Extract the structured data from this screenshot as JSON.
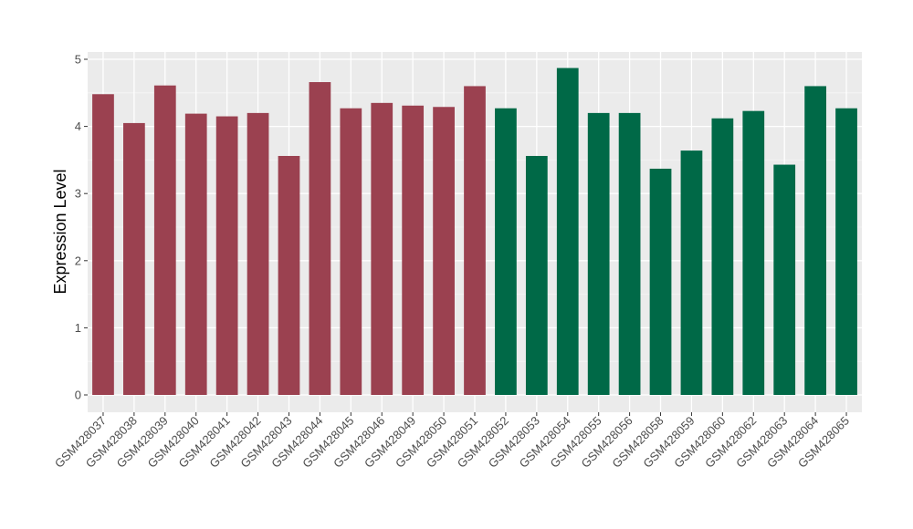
{
  "chart_data": {
    "type": "bar",
    "title": "",
    "xlabel": "",
    "ylabel": "Expression Level",
    "ylim": [
      0,
      5.05
    ],
    "yticks": [
      0,
      1,
      2,
      3,
      4,
      5
    ],
    "grid": true,
    "background": "#ebebeb",
    "legend": "none",
    "categories": [
      "GSM428037",
      "GSM428038",
      "GSM428039",
      "GSM428040",
      "GSM428041",
      "GSM428042",
      "GSM428043",
      "GSM428044",
      "GSM428045",
      "GSM428046",
      "GSM428049",
      "GSM428050",
      "GSM428051",
      "GSM428052",
      "GSM428053",
      "GSM428054",
      "GSM428055",
      "GSM428056",
      "GSM428058",
      "GSM428059",
      "GSM428060",
      "GSM428062",
      "GSM428063",
      "GSM428064",
      "GSM428065"
    ],
    "values": [
      4.48,
      4.05,
      4.61,
      4.19,
      4.15,
      4.2,
      3.56,
      4.66,
      4.27,
      4.35,
      4.31,
      4.29,
      4.6,
      4.27,
      3.56,
      4.87,
      4.2,
      4.2,
      3.37,
      3.64,
      4.12,
      4.23,
      3.43,
      4.6,
      4.27
    ],
    "colors": [
      "#9b4150",
      "#9b4150",
      "#9b4150",
      "#9b4150",
      "#9b4150",
      "#9b4150",
      "#9b4150",
      "#9b4150",
      "#9b4150",
      "#9b4150",
      "#9b4150",
      "#9b4150",
      "#9b4150",
      "#006947",
      "#006947",
      "#006947",
      "#006947",
      "#006947",
      "#006947",
      "#006947",
      "#006947",
      "#006947",
      "#006947",
      "#006947",
      "#006947"
    ]
  }
}
